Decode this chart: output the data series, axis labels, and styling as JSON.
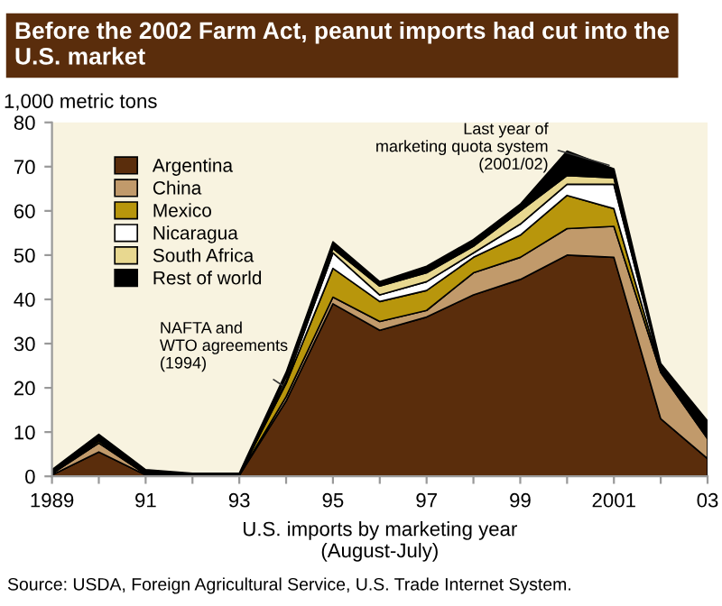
{
  "chart_data": {
    "type": "area",
    "stacked": true,
    "title": "Before the 2002 Farm Act, peanut imports had cut into the U.S. market",
    "ylabel": "1,000 metric tons",
    "xlabel": "U.S. imports by marketing year\n(August-July)",
    "x": [
      1989,
      1990,
      1991,
      1992,
      1993,
      1994,
      1995,
      1996,
      1997,
      1998,
      1999,
      2000,
      2001,
      2002,
      2003
    ],
    "series": [
      {
        "name": "Argentina",
        "color": "#5a2d0c",
        "values": [
          0.3,
          5.5,
          0.3,
          0.2,
          0.2,
          17,
          39,
          33,
          36,
          41,
          44.5,
          50,
          49.5,
          13,
          4
        ]
      },
      {
        "name": "China",
        "color": "#c19a6b",
        "values": [
          0.3,
          2,
          0.2,
          0,
          0.1,
          1,
          1.5,
          2,
          1.5,
          5,
          5,
          6,
          7,
          10.5,
          4.5
        ]
      },
      {
        "name": "Mexico",
        "color": "#b8960c",
        "values": [
          0,
          0.5,
          0,
          0,
          0,
          3,
          6.5,
          4.5,
          4.5,
          3.5,
          5,
          7.5,
          4,
          0.5,
          0.5
        ]
      },
      {
        "name": "Nicaragua",
        "color": "#ffffff",
        "values": [
          0,
          0.3,
          0,
          0,
          0,
          0.5,
          3.5,
          1.5,
          2,
          1,
          2.5,
          2.5,
          5.5,
          0.5,
          0.5
        ]
      },
      {
        "name": "South Africa",
        "color": "#e8d890",
        "values": [
          0,
          0.2,
          0,
          0,
          0,
          1,
          1,
          2,
          2,
          1.5,
          3,
          2,
          1.5,
          0.5,
          0.5
        ]
      },
      {
        "name": "Rest of world",
        "color": "#000000",
        "values": [
          0.9,
          1,
          1,
          0.5,
          0.4,
          1,
          1.5,
          1,
          1.5,
          1.5,
          1.5,
          5.5,
          2,
          0.5,
          2.5
        ]
      }
    ],
    "xlim": [
      1989,
      2003
    ],
    "xticks": [
      1989,
      {
        "value": 1990,
        "label": null
      },
      {
        "value": 1991,
        "label": "91"
      },
      {
        "value": 1992,
        "label": null
      },
      {
        "value": 1993,
        "label": "93"
      },
      {
        "value": 1994,
        "label": null
      },
      {
        "value": 1995,
        "label": "95"
      },
      {
        "value": 1996,
        "label": null
      },
      {
        "value": 1997,
        "label": "97"
      },
      {
        "value": 1998,
        "label": null
      },
      {
        "value": 1999,
        "label": "99"
      },
      {
        "value": 2000,
        "label": null
      },
      2001,
      {
        "value": 2002,
        "label": null
      },
      {
        "value": 2003,
        "label": "03"
      }
    ],
    "ylim": [
      0,
      80
    ],
    "yticks": [
      0,
      10,
      20,
      30,
      40,
      50,
      60,
      70,
      80
    ],
    "grid": false,
    "legend": "top left",
    "annotations": [
      {
        "text": "NAFTA and\nWTO agreements\n(1994)",
        "x": 1994,
        "y": 20
      },
      {
        "text": "Last year of\nmarketing quota system\n(2001/02)",
        "x": 2001,
        "y": 70
      },
      "Source: USDA, Foreign Agricultural Service, U.S. Trade Internet System."
    ]
  }
}
